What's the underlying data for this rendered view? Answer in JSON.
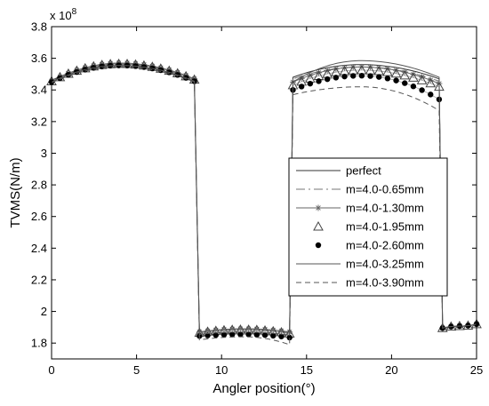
{
  "chart_data": {
    "type": "line",
    "title": "",
    "xlabel": "Angler position(°)",
    "ylabel": "TVMS(N/m)",
    "y_multiplier_label": "x 10",
    "y_multiplier_exponent": "8",
    "xlim": [
      0,
      25
    ],
    "ylim": [
      1.7,
      3.8
    ],
    "x_ticks": [
      0,
      5,
      10,
      15,
      20,
      25
    ],
    "x_tick_labels": [
      "0",
      "5",
      "10",
      "15",
      "20",
      "25"
    ],
    "y_ticks": [
      1.8,
      2.0,
      2.2,
      2.4,
      2.6,
      2.8,
      3.0,
      3.2,
      3.4,
      3.6,
      3.8
    ],
    "y_tick_labels": [
      "1.8",
      "2",
      "2.2",
      "2.4",
      "2.6",
      "2.8",
      "3",
      "3.2",
      "3.4",
      "3.6",
      "3.8"
    ],
    "grid": false,
    "legend_position": "center-right",
    "axes_color": "#000000",
    "series": [
      {
        "name": "perfect",
        "style": "solid",
        "marker": "none",
        "color": "#333333",
        "segments": [
          {
            "x": [
              0,
              4,
              8.4
            ],
            "y": [
              3.46,
              3.565,
              3.47
            ]
          },
          {
            "x": [
              8.7,
              11.3,
              14.0
            ],
            "y": [
              1.87,
              1.89,
              1.87
            ]
          },
          {
            "x": [
              14.2,
              18.2,
              22.8
            ],
            "y": [
              3.48,
              3.56,
              3.47
            ]
          },
          {
            "x": [
              23.0,
              25.0
            ],
            "y": [
              1.89,
              1.92
            ]
          }
        ]
      },
      {
        "name": "m=4.0-0.65mm",
        "style": "dashdot",
        "marker": "none",
        "color": "#777777",
        "segments": [
          {
            "x": [
              0,
              4,
              8.4
            ],
            "y": [
              3.455,
              3.56,
              3.465
            ]
          },
          {
            "x": [
              8.7,
              11.3,
              14.0
            ],
            "y": [
              1.865,
              1.885,
              1.865
            ]
          },
          {
            "x": [
              14.2,
              18.2,
              22.8
            ],
            "y": [
              3.47,
              3.545,
              3.455
            ]
          },
          {
            "x": [
              23.0,
              25.0
            ],
            "y": [
              1.89,
              1.92
            ]
          }
        ]
      },
      {
        "name": "m=4.0-1.30mm",
        "style": "solid",
        "marker": "asterisk",
        "color": "#666666",
        "segments": [
          {
            "x": [
              0,
              4,
              8.4
            ],
            "y": [
              3.455,
              3.57,
              3.47
            ]
          },
          {
            "x": [
              8.7,
              11.3,
              14.0
            ],
            "y": [
              1.87,
              1.89,
              1.87
            ]
          },
          {
            "x": [
              14.2,
              18.2,
              22.8
            ],
            "y": [
              3.45,
              3.545,
              3.44
            ]
          },
          {
            "x": [
              23.0,
              25.0
            ],
            "y": [
              1.895,
              1.92
            ]
          }
        ]
      },
      {
        "name": "m=4.0-1.95mm",
        "style": "none",
        "marker": "triangle",
        "color": "#444444",
        "segments": [
          {
            "x": [
              0,
              4,
              8.4
            ],
            "y": [
              3.455,
              3.565,
              3.465
            ]
          },
          {
            "x": [
              8.7,
              11.3,
              14.0
            ],
            "y": [
              1.865,
              1.885,
              1.86
            ]
          },
          {
            "x": [
              14.2,
              18.2,
              22.8
            ],
            "y": [
              3.43,
              3.525,
              3.42
            ]
          },
          {
            "x": [
              23.0,
              25.0
            ],
            "y": [
              1.895,
              1.92
            ]
          }
        ]
      },
      {
        "name": "m=4.0-2.60mm",
        "style": "none",
        "marker": "dot",
        "color": "#000000",
        "segments": [
          {
            "x": [
              0,
              4,
              8.4
            ],
            "y": [
              3.45,
              3.555,
              3.455
            ]
          },
          {
            "x": [
              8.7,
              11.3,
              14.0
            ],
            "y": [
              1.845,
              1.855,
              1.835
            ]
          },
          {
            "x": [
              14.2,
              18.2,
              22.8
            ],
            "y": [
              3.4,
              3.49,
              3.34
            ]
          },
          {
            "x": [
              23.0,
              25.0
            ],
            "y": [
              1.895,
              1.92
            ]
          }
        ]
      },
      {
        "name": "m=4.0-3.25mm",
        "style": "solid",
        "marker": "none",
        "color": "#555555",
        "segments": [
          {
            "x": [
              0,
              4,
              8.4
            ],
            "y": [
              3.45,
              3.555,
              3.455
            ]
          },
          {
            "x": [
              8.7,
              11.3,
              14.0
            ],
            "y": [
              1.855,
              1.87,
              1.85
            ]
          },
          {
            "x": [
              14.2,
              18.2,
              22.8
            ],
            "y": [
              3.45,
              3.585,
              3.48
            ]
          },
          {
            "x": [
              23.0,
              25.0
            ],
            "y": [
              1.895,
              1.92
            ]
          }
        ]
      },
      {
        "name": "m=4.0-3.90mm",
        "style": "dashed",
        "marker": "none",
        "color": "#555555",
        "segments": [
          {
            "x": [
              0,
              4,
              8.4
            ],
            "y": [
              3.445,
              3.545,
              3.45
            ]
          },
          {
            "x": [
              8.7,
              11.3,
              14.0
            ],
            "y": [
              1.82,
              1.84,
              1.79
            ]
          },
          {
            "x": [
              14.2,
              18.2,
              22.8
            ],
            "y": [
              3.37,
              3.42,
              3.27
            ]
          },
          {
            "x": [
              23.0,
              25.0
            ],
            "y": [
              1.895,
              1.92
            ]
          }
        ]
      }
    ]
  }
}
